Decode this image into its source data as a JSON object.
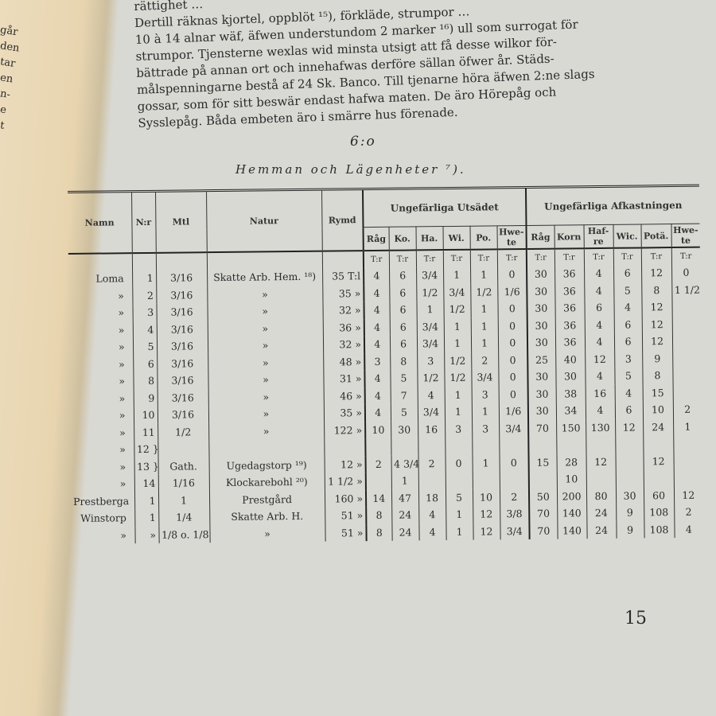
{
  "left_page_fragments": [
    "går",
    "den",
    "tar",
    "en",
    "n-",
    "e",
    "t"
  ],
  "paragraph_lines": [
    "rättighet …",
    "Dertill räknas kjortel, oppblöt ¹⁵), förkläde, strumpor …",
    "10 à 14 alnar wäf, äfwen understundom 2 marker ¹⁶) ull som surrogat för",
    "strumpor. Tjensterne wexlas wid minsta utsigt att få desse wilkor för-",
    "bättrade på annan ort och innehafwas derföre sällan öfwer år. Städs-",
    "målspenningarne bestå af 24 Sk. Banco. Till tjenarne höra äfwen 2:ne slags",
    "gossar, som för sitt beswär endast hafwa maten. De äro Hörepåg och",
    "Sysslepåg. Båda embeten äro i smärre hus förenade."
  ],
  "section_number": "6:o",
  "table_title": "Hemman och Lägenheter ⁷).",
  "table": {
    "headers": {
      "namn": "Namn",
      "nr": "N:r",
      "mtl": "Mtl",
      "natur": "Natur",
      "rymd": "Rymd",
      "utsadet": "Ungefärliga Utsädet",
      "afkastning": "Ungefärliga Afkastningen"
    },
    "utsadet_cols": [
      "Råg",
      "Ko.",
      "Ha.",
      "Wi.",
      "Po.",
      "Hwe-te"
    ],
    "afkastning_cols": [
      "Råg",
      "Korn",
      "Haf-re",
      "Wic.",
      "Potä.",
      "Hwe-te"
    ],
    "unit": "T:r",
    "rows": [
      [
        "Loma",
        "1",
        "3/16",
        "Skatte Arb. Hem. ¹⁸)",
        "35 T:l",
        "4",
        "6",
        "3/4",
        "1",
        "1",
        "0",
        "30",
        "36",
        "4",
        "6",
        "12",
        "0"
      ],
      [
        "»",
        "2",
        "3/16",
        "»",
        "35 »",
        "4",
        "6",
        "1/2",
        "3/4",
        "1/2",
        "1/6",
        "30",
        "36",
        "4",
        "5",
        "8",
        "1 1/2"
      ],
      [
        "»",
        "3",
        "3/16",
        "»",
        "32 »",
        "4",
        "6",
        "1",
        "1/2",
        "1",
        "0",
        "30",
        "36",
        "6",
        "4",
        "12",
        ""
      ],
      [
        "»",
        "4",
        "3/16",
        "»",
        "36 »",
        "4",
        "6",
        "3/4",
        "1",
        "1",
        "0",
        "30",
        "36",
        "4",
        "6",
        "12",
        ""
      ],
      [
        "»",
        "5",
        "3/16",
        "»",
        "32 »",
        "4",
        "6",
        "3/4",
        "1",
        "1",
        "0",
        "30",
        "36",
        "4",
        "6",
        "12",
        ""
      ],
      [
        "»",
        "6",
        "3/16",
        "»",
        "48 »",
        "3",
        "8",
        "3",
        "1/2",
        "2",
        "0",
        "25",
        "40",
        "12",
        "3",
        "9",
        ""
      ],
      [
        "»",
        "8",
        "3/16",
        "»",
        "31 »",
        "4",
        "5",
        "1/2",
        "1/2",
        "3/4",
        "0",
        "30",
        "30",
        "4",
        "5",
        "8",
        ""
      ],
      [
        "»",
        "9",
        "3/16",
        "»",
        "46 »",
        "4",
        "7",
        "4",
        "1",
        "3",
        "0",
        "30",
        "38",
        "16",
        "4",
        "15",
        ""
      ],
      [
        "»",
        "10",
        "3/16",
        "»",
        "35 »",
        "4",
        "5",
        "3/4",
        "1",
        "1",
        "1/6",
        "30",
        "34",
        "4",
        "6",
        "10",
        "2"
      ],
      [
        "»",
        "11",
        "1/2",
        "»",
        "122 »",
        "10",
        "30",
        "16",
        "3",
        "3",
        "3/4",
        "70",
        "150",
        "130",
        "12",
        "24",
        "1"
      ],
      [
        "»",
        "12 }",
        "",
        "",
        "",
        "",
        "",
        "",
        "",
        "",
        "",
        "",
        "",
        "",
        "",
        "",
        ""
      ],
      [
        "»",
        "13 }",
        "Gath.",
        "Ugedagstorp ¹⁹)",
        "12 »",
        "2",
        "4 3/4",
        "2",
        "0",
        "1",
        "0",
        "15",
        "28",
        "12",
        "",
        "12",
        ""
      ],
      [
        "»",
        "14",
        "1/16",
        "Klockarebohl ²⁰)",
        "1 1/2 »",
        "",
        "1",
        "",
        "",
        "",
        "",
        "",
        "10",
        "",
        "",
        "",
        ""
      ],
      [
        "Prestberga",
        "1",
        "1",
        "Prestgård",
        "160 »",
        "14",
        "47",
        "18",
        "5",
        "10",
        "2",
        "50",
        "200",
        "80",
        "30",
        "60",
        "12"
      ],
      [
        "Winstorp",
        "1",
        "1/4",
        "Skatte Arb. H.",
        "51 »",
        "8",
        "24",
        "4",
        "1",
        "12",
        "3/8",
        "70",
        "140",
        "24",
        "9",
        "108",
        "2"
      ],
      [
        "»",
        "»",
        "1/8 o. 1/8",
        "»",
        "51 »",
        "8",
        "24",
        "4",
        "1",
        "12",
        "3/4",
        "70",
        "140",
        "24",
        "9",
        "108",
        "4"
      ]
    ]
  },
  "page_number": "15"
}
